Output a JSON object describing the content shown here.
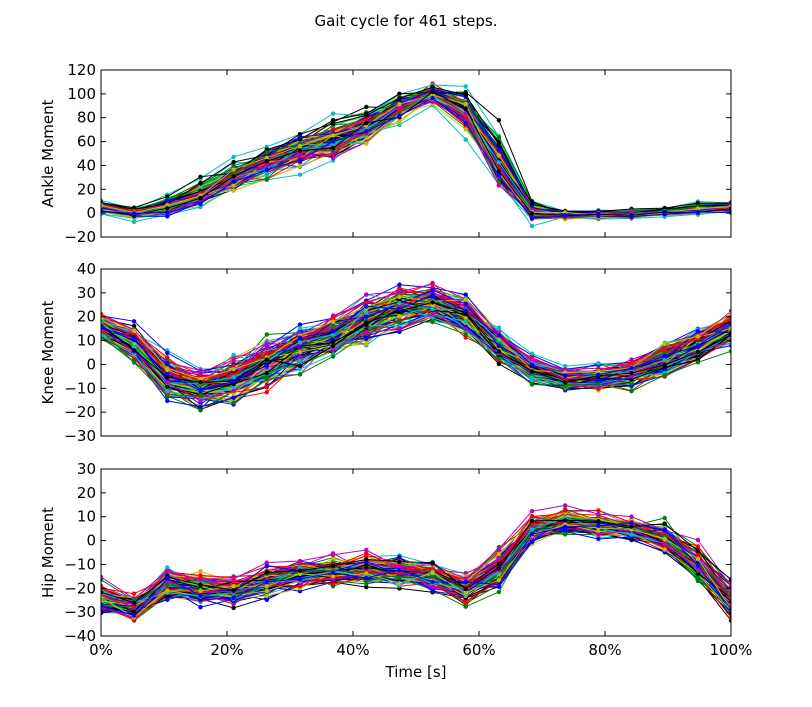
{
  "figure": {
    "title": "Gait cycle for 461 steps."
  },
  "chart_data": [
    {
      "type": "line",
      "ylabel": "Ankle Moment",
      "xlabel": "",
      "xlim": [
        0,
        100
      ],
      "ylim": [
        -20,
        120
      ],
      "yticks": [
        -20,
        0,
        20,
        40,
        60,
        80,
        100,
        120
      ],
      "ytick_labels": [
        "−20",
        "0",
        "20",
        "40",
        "60",
        "80",
        "100",
        "120"
      ],
      "x": [
        0,
        5.26,
        10.53,
        15.79,
        21.05,
        26.32,
        31.58,
        36.84,
        42.11,
        47.37,
        52.63,
        57.89,
        63.16,
        68.42,
        73.68,
        78.95,
        84.21,
        89.47,
        94.74,
        100
      ],
      "mean": [
        5,
        0,
        6,
        16,
        30,
        42,
        52,
        60,
        72,
        88,
        100,
        85,
        40,
        2,
        -2,
        -1,
        -1,
        1,
        3,
        5
      ],
      "spread": [
        4,
        4,
        7,
        9,
        10,
        12,
        13,
        14,
        14,
        10,
        8,
        14,
        22,
        8,
        3,
        3,
        3,
        3,
        4,
        4
      ],
      "n_series": 461,
      "grid": false
    },
    {
      "type": "line",
      "ylabel": "Knee Moment",
      "xlabel": "",
      "xlim": [
        0,
        100
      ],
      "ylim": [
        -30,
        40
      ],
      "yticks": [
        -30,
        -20,
        -10,
        0,
        10,
        20,
        30,
        40
      ],
      "ytick_labels": [
        "−30",
        "−20",
        "−10",
        "0",
        "10",
        "20",
        "30",
        "40"
      ],
      "x": [
        0,
        5.26,
        10.53,
        15.79,
        21.05,
        26.32,
        31.58,
        36.84,
        42.11,
        47.37,
        52.63,
        57.89,
        63.16,
        68.42,
        73.68,
        78.95,
        84.21,
        89.47,
        94.74,
        100
      ],
      "mean": [
        16,
        9,
        -5,
        -10,
        -6,
        0,
        6,
        12,
        18,
        24,
        26,
        20,
        8,
        -2,
        -6,
        -6,
        -4,
        2,
        8,
        15
      ],
      "spread": [
        5,
        7,
        7,
        7,
        8,
        8,
        8,
        8,
        8,
        8,
        7,
        7,
        6,
        5,
        4,
        5,
        5,
        6,
        6,
        6
      ],
      "n_series": 461,
      "grid": false
    },
    {
      "type": "line",
      "ylabel": "Hip Moment",
      "xlabel": "Time [s]",
      "xlim": [
        0,
        100
      ],
      "ylim": [
        -40,
        30
      ],
      "yticks": [
        -40,
        -30,
        -20,
        -10,
        0,
        10,
        20,
        30
      ],
      "ytick_labels": [
        "−40",
        "−30",
        "−20",
        "−10",
        "0",
        "10",
        "20",
        "30"
      ],
      "xticks": [
        0,
        20,
        40,
        60,
        80,
        100
      ],
      "xtick_labels": [
        "0%",
        "20%",
        "40%",
        "60%",
        "80%",
        "100%"
      ],
      "x": [
        0,
        5.26,
        10.53,
        15.79,
        21.05,
        26.32,
        31.58,
        36.84,
        42.11,
        47.37,
        52.63,
        57.89,
        63.16,
        68.42,
        73.68,
        78.95,
        84.21,
        89.47,
        94.74,
        100
      ],
      "mean": [
        -24,
        -28,
        -18,
        -20,
        -21,
        -17,
        -14,
        -13,
        -12,
        -13,
        -15,
        -20,
        -12,
        5,
        8,
        6,
        5,
        1,
        -10,
        -25
      ],
      "spread": [
        6,
        6,
        6,
        6,
        6,
        6,
        6,
        6,
        6,
        6,
        6,
        6,
        7,
        6,
        5,
        5,
        5,
        6,
        7,
        7
      ],
      "n_series": 461,
      "grid": false
    }
  ],
  "series_colors": [
    "#0000ff",
    "#008000",
    "#ff0000",
    "#00bfbf",
    "#bf00bf",
    "#bfbf00",
    "#000000"
  ]
}
